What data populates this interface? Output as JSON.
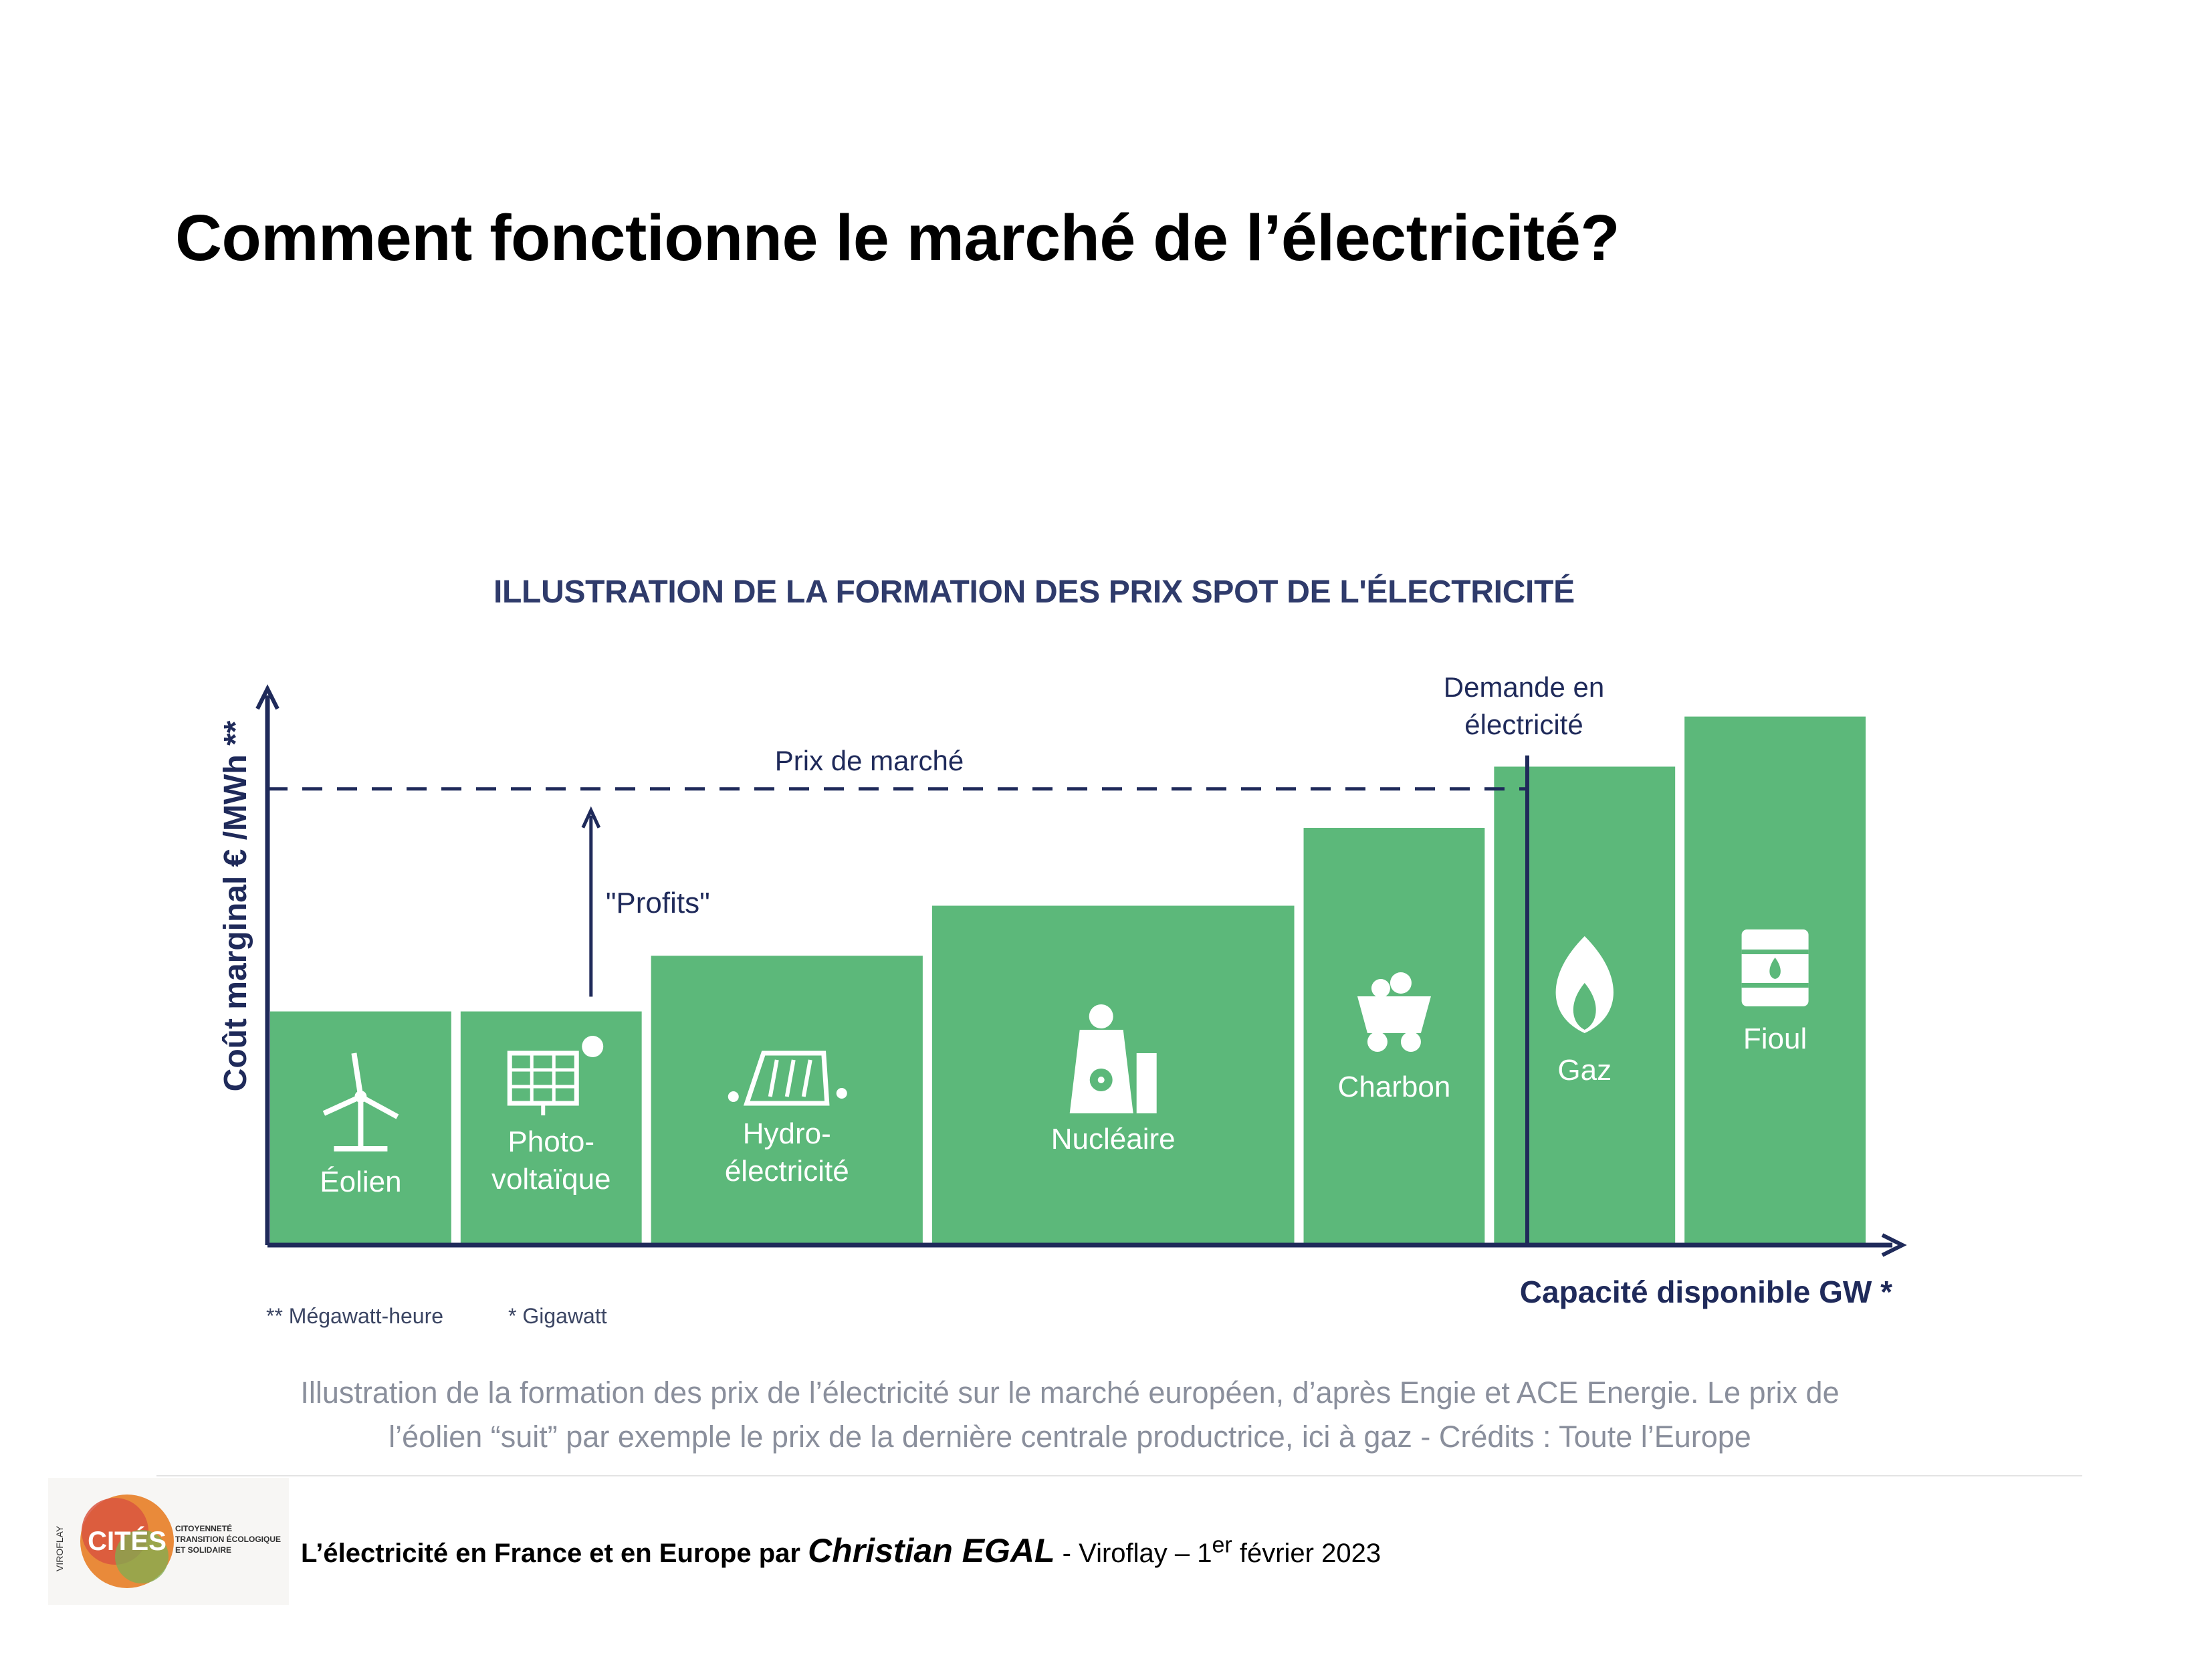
{
  "slide": {
    "title": "Comment fonctionne le marché de l’électricité?"
  },
  "chart_data": {
    "type": "bar",
    "title": "ILLUSTRATION DE LA FORMATION DES PRIX SPOT DE L'ÉLECTRICITÉ",
    "xlabel": "Capacité disponible GW *",
    "ylabel": "Coût marginal € /MWh **",
    "ylim": [
      0,
      100
    ],
    "bar_color": "#5cb87a",
    "axis_color": "#1f2a5a",
    "categories": [
      "Éolien",
      "Photo-\nvoltaïque",
      "Hydro-\nélectricité",
      "Nucléaire",
      "Charbon",
      "Gaz",
      "Fioul"
    ],
    "icons": [
      "wind-turbine-icon",
      "solar-panel-icon",
      "hydro-dam-icon",
      "nuclear-plant-icon",
      "coal-cart-icon",
      "gas-flame-icon",
      "oil-barrel-icon"
    ],
    "widths": [
      1.0,
      1.0,
      1.5,
      2.0,
      1.0,
      1.0,
      1.0
    ],
    "values": [
      42,
      42,
      52,
      61,
      75,
      86,
      95
    ],
    "market_price": {
      "label": "Prix de marché",
      "value": 82
    },
    "demand": {
      "label": "Demande en\nélectricité",
      "x_fraction": 0.785
    },
    "profits_label": "\"Profits\"",
    "grid": false
  },
  "notes": {
    "megawatt": "** Mégawatt-heure",
    "gigawatt": "* Gigawatt"
  },
  "caption": {
    "line1": "Illustration de la formation des prix de l’électricité sur le marché européen, d’après Engie et ACE Energie. Le prix de",
    "line2": "l’éolien “suit” par exemple le prix de la dernière centrale productrice, ici à gaz - Crédits : Toute l’Europe"
  },
  "footer": {
    "prefix": "L’électricité en France et en Europe par",
    "author": "Christian EGAL",
    "place": "- Viroflay – 1",
    "sup": "er",
    "date": "février 2023"
  },
  "logo": {
    "text": "CITÉS",
    "side": "VIROFLAY",
    "tagline": "CITOYENNETÉ\nTRANSITION ÉCOLOGIQUE\nET SOLIDAIRE"
  }
}
